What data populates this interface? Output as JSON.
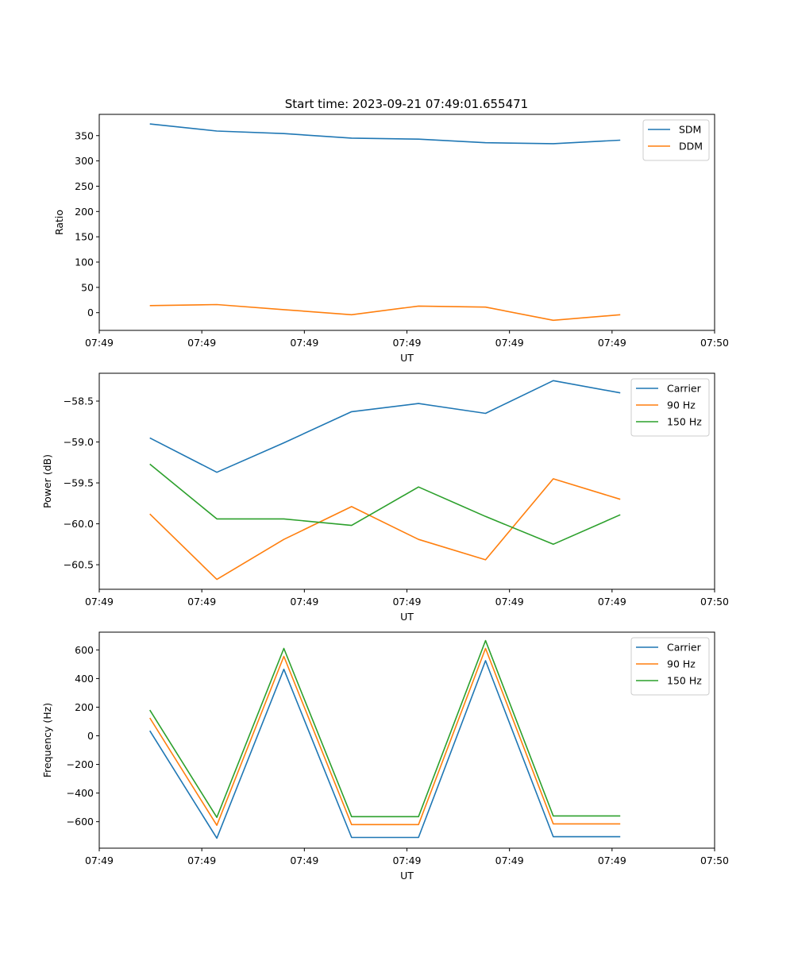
{
  "title": "Start time: 2023-09-21 07:49:01.655471",
  "chart_data": [
    {
      "type": "line",
      "ylabel": "Ratio",
      "xlabel": "UT",
      "xlim": [
        0,
        9
      ],
      "ylim": [
        -35,
        392
      ],
      "yticks": [
        0,
        50,
        100,
        150,
        200,
        250,
        300,
        350
      ],
      "xticks": [
        0,
        1.5,
        3,
        4.5,
        6,
        7.5,
        9
      ],
      "xtick_labels": [
        "07:49",
        "07:49",
        "07:49",
        "07:49",
        "07:49",
        "07:49",
        "07:50"
      ],
      "legend": "top-right",
      "x": [
        0.74,
        1.72,
        2.7,
        3.69,
        4.67,
        5.65,
        6.64,
        7.62
      ],
      "series": [
        {
          "name": "SDM",
          "color": "#1f77b4",
          "values": [
            373,
            359,
            354,
            345,
            343,
            336,
            334,
            341
          ]
        },
        {
          "name": "DDM",
          "color": "#ff7f0e",
          "values": [
            14,
            16,
            6,
            -4,
            13,
            11,
            -15,
            -4
          ]
        }
      ]
    },
    {
      "type": "line",
      "ylabel": "Power (dB)",
      "xlabel": "UT",
      "xlim": [
        0,
        9
      ],
      "ylim": [
        -60.8,
        -58.16
      ],
      "yticks": [
        -60.5,
        -60.0,
        -59.5,
        -59.0,
        -58.5
      ],
      "ytick_labels": [
        "−60.5",
        "−60.0",
        "−59.5",
        "−59.0",
        "−58.5"
      ],
      "xticks": [
        0,
        1.5,
        3,
        4.5,
        6,
        7.5,
        9
      ],
      "xtick_labels": [
        "07:49",
        "07:49",
        "07:49",
        "07:49",
        "07:49",
        "07:49",
        "07:50"
      ],
      "legend": "top-right",
      "x": [
        0.74,
        1.72,
        2.7,
        3.69,
        4.67,
        5.65,
        6.64,
        7.62
      ],
      "series": [
        {
          "name": "Carrier",
          "color": "#1f77b4",
          "values": [
            -58.95,
            -59.37,
            -59.01,
            -58.63,
            -58.53,
            -58.65,
            -58.25,
            -58.4
          ]
        },
        {
          "name": "90 Hz",
          "color": "#ff7f0e",
          "values": [
            -59.88,
            -60.68,
            -60.19,
            -59.79,
            -60.19,
            -60.44,
            -59.45,
            -59.7
          ]
        },
        {
          "name": "150 Hz",
          "color": "#2ca02c",
          "values": [
            -59.27,
            -59.94,
            -59.94,
            -60.02,
            -59.55,
            -59.91,
            -60.25,
            -59.89
          ]
        }
      ]
    },
    {
      "type": "line",
      "ylabel": "Frequency (Hz)",
      "xlabel": "UT",
      "xlim": [
        0,
        9
      ],
      "ylim": [
        -785,
        724
      ],
      "yticks": [
        -600,
        -400,
        -200,
        0,
        200,
        400,
        600
      ],
      "ytick_labels": [
        "−600",
        "−400",
        "−200",
        "0",
        "200",
        "400",
        "600"
      ],
      "xticks": [
        0,
        1.5,
        3,
        4.5,
        6,
        7.5,
        9
      ],
      "xtick_labels": [
        "07:49",
        "07:49",
        "07:49",
        "07:49",
        "07:49",
        "07:49",
        "07:50"
      ],
      "legend": "top-right",
      "x": [
        0.74,
        1.72,
        2.7,
        3.69,
        4.67,
        5.65,
        6.64,
        7.62
      ],
      "series": [
        {
          "name": "Carrier",
          "color": "#1f77b4",
          "values": [
            35,
            -715,
            465,
            -710,
            -710,
            525,
            -705,
            -705
          ]
        },
        {
          "name": "90 Hz",
          "color": "#ff7f0e",
          "values": [
            125,
            -625,
            555,
            -620,
            -620,
            610,
            -615,
            -615
          ]
        },
        {
          "name": "150 Hz",
          "color": "#2ca02c",
          "values": [
            180,
            -570,
            610,
            -565,
            -565,
            665,
            -560,
            -560
          ]
        }
      ]
    }
  ]
}
